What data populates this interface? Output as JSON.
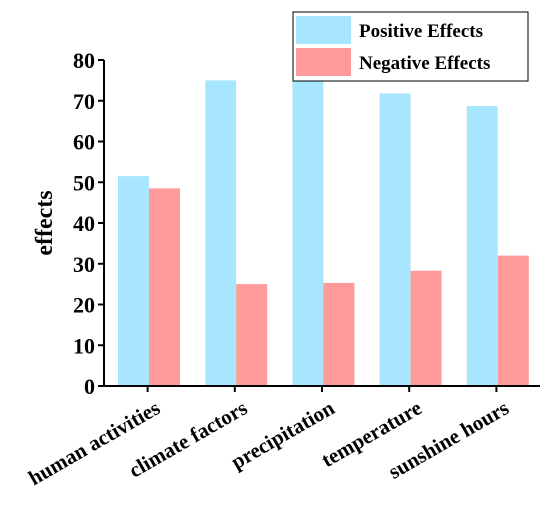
{
  "chart_data": {
    "type": "bar",
    "categories": [
      "human activities",
      "climate factors",
      "precipitation",
      "temperature",
      "sunshine hours"
    ],
    "series": [
      {
        "name": "Positive Effects",
        "values": [
          51.5,
          75,
          74.8,
          71.8,
          68.7
        ],
        "color": "#a8e6ff"
      },
      {
        "name": "Negative Effects",
        "values": [
          48.5,
          25,
          25.3,
          28.3,
          32
        ],
        "color": "#ff9a9a"
      }
    ],
    "title": "",
    "xlabel": "",
    "ylabel": "effects",
    "ylim": [
      0,
      80
    ],
    "yticks": [
      0,
      10,
      20,
      30,
      40,
      50,
      60,
      70,
      80
    ],
    "legend_position": "top-right",
    "grid": false
  }
}
